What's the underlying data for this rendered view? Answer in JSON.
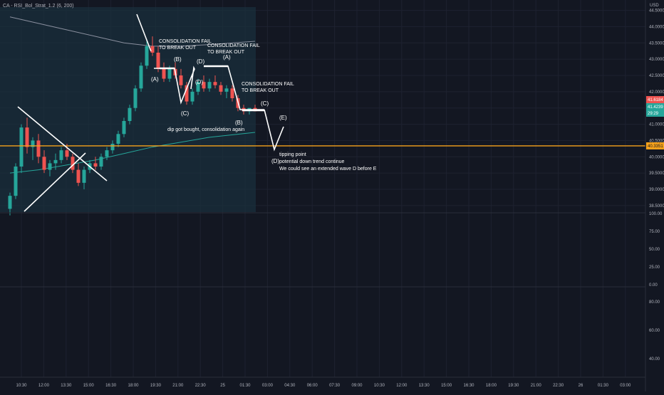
{
  "header": {
    "indicator_label": "CA - RSI_Bol_Strat_1.2 (6, 200)",
    "currency": "USD"
  },
  "colors": {
    "background": "#131722",
    "grid": "#1e2230",
    "up": "#26a69a",
    "down": "#ef5350",
    "highlight_box": "#19313d",
    "level_line": "#f7a21b",
    "annotation": "#ffffff",
    "band_upper": "#8a8f9e",
    "band_lower": "#26a69a"
  },
  "price_axis": {
    "ticks": [
      "44.5000",
      "44.0000",
      "43.5000",
      "43.0000",
      "42.5000",
      "42.0000",
      "41.5000",
      "41.0000",
      "40.5000",
      "40.0000",
      "39.5000",
      "39.0000",
      "38.5000"
    ],
    "tags": [
      {
        "label": "41.6184",
        "color": "#ef5350"
      },
      {
        "label": "41.4239",
        "color": "#26a69a"
      },
      {
        "label": "29:29",
        "color": "#26a69a"
      },
      {
        "label": "40.3351",
        "color": "#f7a21b"
      }
    ]
  },
  "rsi_axis": {
    "ticks": [
      "100.00",
      "75.00",
      "50.00",
      "25.00",
      "0.00"
    ]
  },
  "sub_axis": {
    "ticks": [
      "80.00",
      "60.00",
      "40.00"
    ]
  },
  "time_axis": {
    "labels": [
      "10:30",
      "12:00",
      "13:30",
      "15:00",
      "16:30",
      "18:00",
      "19:30",
      "21:00",
      "22:30",
      "25",
      "01:30",
      "03:00",
      "04:30",
      "06:00",
      "07:30",
      "09:00",
      "10:30",
      "12:00",
      "13:30",
      "15:00",
      "16:30",
      "18:00",
      "19:30",
      "21:00",
      "22:30",
      "26",
      "01:30",
      "03:00"
    ]
  },
  "annotations": {
    "consolidation_1": [
      "CONSOLIDATION FAIL",
      "TO BREAK OUT"
    ],
    "consolidation_2": [
      "CONSOLIDATION FAIL",
      "TO BREAK OUT"
    ],
    "consolidation_3": [
      "CONSOLIDATION FAIL",
      "TO BREAK OUT"
    ],
    "dip_note": "dip got bought, consolidation again",
    "tipping": [
      "tipping point",
      "potential down trend continue",
      "We could see an extended wave D before E"
    ],
    "wave_A1": "(A)",
    "wave_B1": "(B)",
    "wave_C1": "(C)",
    "wave_D1": "(D)",
    "wave_A2": "(A)",
    "wave_B2": "(B)",
    "wave_C2": "(C)",
    "wave_D2": "(D)",
    "wave_E": "(E)"
  },
  "chart_data": {
    "type": "candlestick",
    "ylim": [
      38.3,
      44.6
    ],
    "series": [
      {
        "name": "price",
        "ohlc": [
          [
            38.4,
            38.9,
            38.2,
            38.8
          ],
          [
            38.8,
            39.8,
            38.7,
            39.7
          ],
          [
            39.7,
            41.0,
            39.5,
            40.9
          ],
          [
            40.9,
            41.2,
            40.1,
            40.3
          ],
          [
            40.3,
            40.6,
            39.9,
            40.5
          ],
          [
            40.5,
            40.7,
            39.8,
            40.0
          ],
          [
            40.0,
            40.2,
            39.5,
            39.6
          ],
          [
            39.6,
            39.9,
            39.4,
            39.8
          ],
          [
            39.8,
            40.1,
            39.6,
            39.9
          ],
          [
            39.9,
            40.3,
            39.8,
            40.2
          ],
          [
            40.2,
            40.4,
            39.9,
            40.0
          ],
          [
            40.0,
            40.1,
            39.5,
            39.6
          ],
          [
            39.6,
            39.8,
            39.1,
            39.2
          ],
          [
            39.2,
            39.7,
            39.0,
            39.6
          ],
          [
            39.6,
            39.9,
            39.5,
            39.8
          ],
          [
            39.8,
            40.0,
            39.6,
            39.7
          ],
          [
            39.7,
            40.1,
            39.6,
            40.0
          ],
          [
            40.0,
            40.3,
            39.9,
            40.2
          ],
          [
            40.2,
            40.5,
            40.1,
            40.4
          ],
          [
            40.4,
            40.8,
            40.3,
            40.7
          ],
          [
            40.7,
            41.2,
            40.6,
            41.1
          ],
          [
            41.1,
            41.6,
            41.0,
            41.5
          ],
          [
            41.5,
            42.2,
            41.4,
            42.1
          ],
          [
            42.1,
            42.9,
            42.0,
            42.8
          ],
          [
            42.8,
            43.6,
            42.7,
            43.4
          ],
          [
            43.4,
            43.7,
            43.1,
            43.2
          ],
          [
            43.2,
            43.4,
            42.6,
            42.7
          ],
          [
            42.7,
            42.9,
            42.3,
            42.4
          ],
          [
            42.4,
            42.8,
            42.3,
            42.7
          ],
          [
            42.7,
            42.9,
            42.4,
            42.5
          ],
          [
            42.5,
            42.7,
            42.1,
            42.2
          ],
          [
            42.2,
            42.3,
            41.6,
            41.7
          ],
          [
            41.7,
            42.1,
            41.6,
            42.0
          ],
          [
            42.0,
            42.4,
            41.9,
            42.3
          ],
          [
            42.3,
            42.5,
            42.0,
            42.1
          ],
          [
            42.1,
            42.4,
            42.0,
            42.3
          ],
          [
            42.3,
            42.5,
            42.1,
            42.2
          ],
          [
            42.2,
            42.3,
            41.9,
            42.0
          ],
          [
            42.0,
            42.2,
            41.8,
            42.1
          ],
          [
            42.1,
            42.2,
            41.7,
            41.8
          ],
          [
            41.8,
            41.9,
            41.4,
            41.5
          ],
          [
            41.5,
            41.6,
            41.3,
            41.4
          ],
          [
            41.4,
            41.5,
            41.3,
            41.5
          ],
          [
            41.5,
            41.6,
            41.4,
            41.4
          ]
        ]
      },
      {
        "name": "upper band",
        "points": [
          [
            0,
            44.3
          ],
          [
            5,
            44.1
          ],
          [
            10,
            43.9
          ],
          [
            15,
            43.7
          ],
          [
            20,
            43.5
          ],
          [
            25,
            43.4
          ],
          [
            30,
            43.4
          ],
          [
            35,
            43.45
          ],
          [
            43,
            43.55
          ]
        ]
      },
      {
        "name": "lower band",
        "points": [
          [
            0,
            39.5
          ],
          [
            5,
            39.6
          ],
          [
            10,
            39.75
          ],
          [
            15,
            39.9
          ],
          [
            20,
            40.1
          ],
          [
            25,
            40.3
          ],
          [
            30,
            40.45
          ],
          [
            35,
            40.6
          ],
          [
            43,
            40.75
          ]
        ]
      }
    ],
    "hlines": [
      40.3351
    ]
  }
}
